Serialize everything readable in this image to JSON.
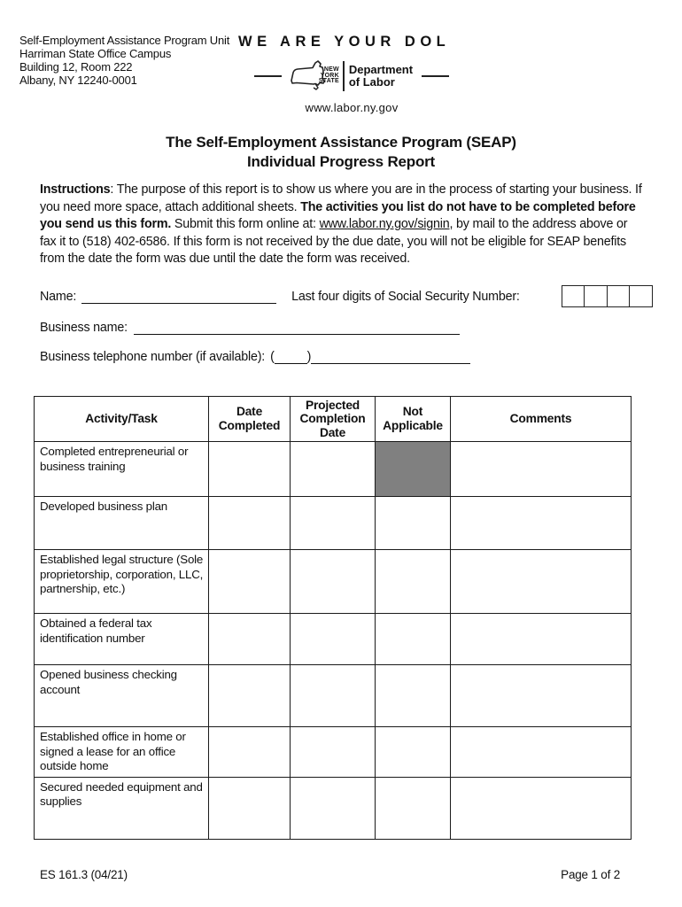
{
  "header": {
    "address_lines": [
      "Self-Employment Assistance Program Unit",
      "Harriman State Office Campus",
      "Building 12, Room 222",
      "Albany, NY 12240-0001"
    ],
    "slogan": "WE ARE YOUR DOL",
    "logo": {
      "state_name_lines": [
        "NEW",
        "YORK",
        "STATE"
      ],
      "dept_lines": [
        "Department",
        "of Labor"
      ],
      "website": "www.labor.ny.gov"
    }
  },
  "title": {
    "line1": "The Self-Employment Assistance Program (SEAP)",
    "line2": "Individual Progress Report"
  },
  "instructions": {
    "label": "Instructions",
    "part1": ": The purpose of this report is to show us where you are in the process of starting your business. If you need more space, attach additional sheets. ",
    "bold": "The activities you list do not have to be completed before you send us this form.",
    "part2": "  Submit this form online at: ",
    "link": "www.labor.ny.gov/signin",
    "part3": ", by mail to the address above or fax it to (518) 402-6586. If this form is not received by the due date, you will not be eligible for SEAP benefits from the date the form was due until the date the form was received."
  },
  "fields": {
    "name_label": "Name:",
    "ssn_label": "Last four digits of Social Security Number:",
    "ssn_boxes": 4,
    "business_name_label": "Business name:",
    "business_phone_label": "Business telephone number (if available):",
    "phone_open_paren": "(",
    "phone_close_paren": ")"
  },
  "table": {
    "headers": [
      "Activity/Task",
      "Date Completed",
      "Projected Completion Date",
      "Not Applicable",
      "Comments"
    ],
    "shaded_color": "#808080",
    "rows": [
      {
        "activity": "Completed entrepreneurial or business training",
        "na_shaded": true
      },
      {
        "activity": "Developed business plan",
        "na_shaded": false
      },
      {
        "activity": "Established legal structure (Sole proprietorship, corporation, LLC, partnership, etc.)",
        "na_shaded": false
      },
      {
        "activity": "Obtained a federal tax identification number",
        "na_shaded": false
      },
      {
        "activity": "Opened business checking account",
        "na_shaded": false
      },
      {
        "activity": "Established office in home or signed a lease for an office outside home",
        "na_shaded": false
      },
      {
        "activity": "Secured needed equipment and supplies",
        "na_shaded": false
      }
    ]
  },
  "footer": {
    "form_number": "ES 161.3 (04/21)",
    "page_label": "Page 1 of 2"
  }
}
